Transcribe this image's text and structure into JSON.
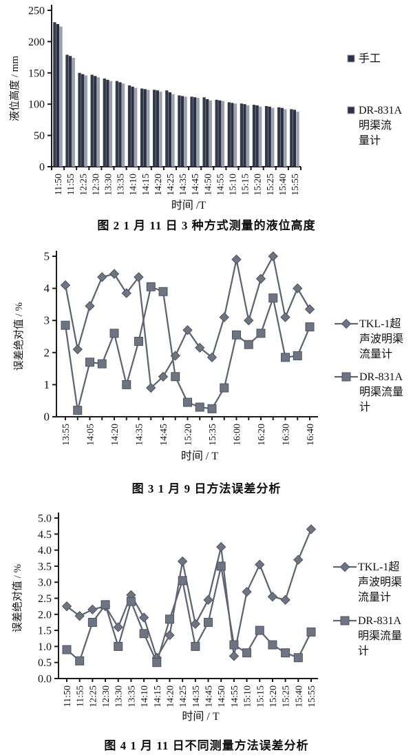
{
  "colors": {
    "axis": "#1b1b1b",
    "bar_1": "#333a4b",
    "bar_2": "#2c3243",
    "bar_3": "#9aa0ad",
    "line": "#5e6573",
    "marker_fill": "#6d7482",
    "marker_stroke": "#4d5360",
    "legend_swatch_border": "#9aa0ac"
  },
  "chart_data": [
    {
      "type": "bar",
      "title": "图 2  1 月 11 日 3 种方式测量的液位高度",
      "xlabel": "时间 /T",
      "ylabel": "液位高度 / mm",
      "ylim": [
        0,
        250
      ],
      "ytick_step": 50,
      "grid": false,
      "legend_position": "right",
      "categories": [
        "11:50",
        "11:55",
        "12:25",
        "12:30",
        "13:30",
        "13:35",
        "14:10",
        "14:15",
        "14:20",
        "14:25",
        "14:35",
        "14:45",
        "14:50",
        "14:55",
        "15:10",
        "15:15",
        "15:20",
        "15:25",
        "15:40",
        "15:55"
      ],
      "series": [
        {
          "name": "手工",
          "values": [
            231,
            179,
            150,
            147,
            141,
            137,
            130,
            125,
            123,
            122,
            114,
            112,
            111,
            107,
            103,
            101,
            99,
            97,
            95,
            92
          ]
        },
        {
          "name": "",
          "values": [
            228,
            177,
            148,
            145,
            139,
            135,
            128,
            124,
            122,
            119,
            113,
            111,
            108,
            106,
            102,
            100,
            98,
            96,
            94,
            91
          ]
        },
        {
          "name": "DR-831A明渠流量计",
          "values": [
            224,
            174,
            146,
            143,
            137,
            133,
            126,
            123,
            120,
            116,
            112,
            110,
            106,
            105,
            101,
            98,
            96,
            94,
            92,
            88
          ]
        }
      ],
      "legend": [
        {
          "label": "手工",
          "label_lines": [
            "手工"
          ],
          "marker": "square"
        },
        {
          "label": "DR-831A明渠流量计",
          "label_lines": [
            "DR-831A",
            "明渠流",
            "量计"
          ],
          "marker": "square"
        }
      ]
    },
    {
      "type": "line",
      "title": "图 3  1 月 9 日方法误差分析",
      "xlabel": "时间 / T",
      "ylabel": "误差绝对值 / %",
      "ylim": [
        0,
        5
      ],
      "ytick_step": 1,
      "grid": false,
      "legend_position": "right",
      "x_ticklabels": [
        "13:55",
        "",
        "14:05",
        "",
        "14:20",
        "",
        "14:35",
        "",
        "14:45",
        "",
        "15:20",
        "",
        "15:35",
        "",
        "16:00",
        "",
        "16:20",
        "",
        "16:30",
        "",
        "16:40"
      ],
      "series": [
        {
          "name": "TKL-1超声波明渠流量计",
          "marker": "diamond",
          "values": [
            4.1,
            2.1,
            3.45,
            4.35,
            4.45,
            3.85,
            4.35,
            0.9,
            1.25,
            1.9,
            2.7,
            2.15,
            1.85,
            3.1,
            4.9,
            3.0,
            4.3,
            5.0,
            3.1,
            4.0,
            3.35
          ]
        },
        {
          "name": "DR-831A明渠流量计",
          "marker": "square",
          "values": [
            2.85,
            0.2,
            1.7,
            1.65,
            2.6,
            1.0,
            2.35,
            4.05,
            3.9,
            1.25,
            0.45,
            0.3,
            0.25,
            0.9,
            2.55,
            2.25,
            2.6,
            3.7,
            1.85,
            1.9,
            2.8
          ]
        }
      ],
      "legend": [
        {
          "label": "TKL-1超声波明渠流量计",
          "label_lines": [
            "TKL-1超",
            "声波明渠",
            "流量计"
          ],
          "marker": "diamond"
        },
        {
          "label": "DR-831A明渠流量计",
          "label_lines": [
            "DR-831A",
            "明渠流量",
            "计"
          ],
          "marker": "square"
        }
      ]
    },
    {
      "type": "line",
      "title": "图 4  1 月 11 日不同测量方法误差分析",
      "xlabel": "时间 / T",
      "ylabel": "误差绝对值 / %",
      "ylim": [
        0,
        5
      ],
      "ytick_step": 0.5,
      "grid": false,
      "legend_position": "right",
      "x_ticklabels": [
        "11:50",
        "11:55",
        "12:25",
        "12:30",
        "13:30",
        "13:35",
        "14:10",
        "14:15",
        "14:20",
        "14:25",
        "14:35",
        "14:45",
        "14:50",
        "14:55",
        "15:10",
        "15:15",
        "15:20",
        "15:25",
        "15:40",
        "15:55"
      ],
      "series": [
        {
          "name": "TKL-1超声波明渠流量计",
          "marker": "diamond",
          "values": [
            2.25,
            1.95,
            2.15,
            2.25,
            1.6,
            2.6,
            1.9,
            0.65,
            1.35,
            3.65,
            1.7,
            2.45,
            4.1,
            0.7,
            2.7,
            3.55,
            2.55,
            2.45,
            3.7,
            4.65
          ]
        },
        {
          "name": "DR-831A明渠流量计",
          "marker": "square",
          "values": [
            0.9,
            0.55,
            1.75,
            2.3,
            1.0,
            2.4,
            1.4,
            0.5,
            1.85,
            3.05,
            1.0,
            1.75,
            3.5,
            1.05,
            0.8,
            1.5,
            1.05,
            0.8,
            0.65,
            1.45
          ]
        }
      ],
      "legend": [
        {
          "label": "TKL-1超声波明渠流量计",
          "label_lines": [
            "TKL-1超",
            "声波明渠",
            "流量计"
          ],
          "marker": "diamond"
        },
        {
          "label": "DR-831A明渠流量计",
          "label_lines": [
            "DR-831A",
            "明渠流量",
            "计"
          ],
          "marker": "square"
        }
      ]
    }
  ]
}
